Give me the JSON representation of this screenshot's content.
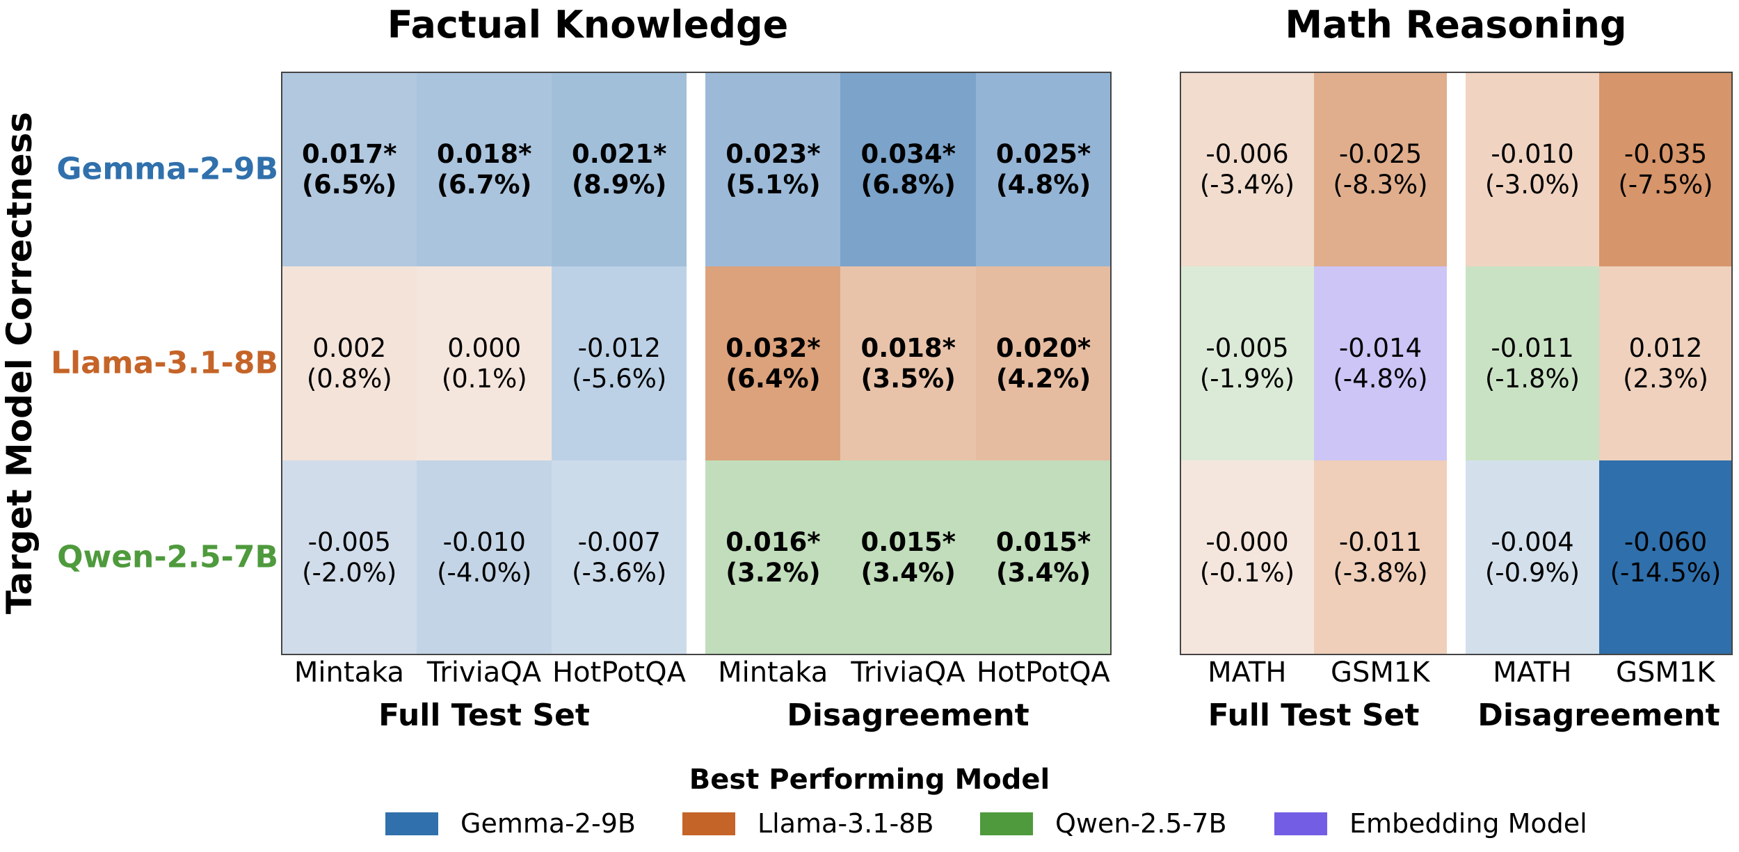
{
  "chart_data": {
    "type": "heatmap",
    "ylabel": "Target Model Correctness",
    "rows": [
      "Gemma-2-9B",
      "Llama-3.1-8B",
      "Qwen-2.5-7B"
    ],
    "row_colors": [
      "#3070ac",
      "#c56428",
      "#4e9a3c"
    ],
    "panels": [
      {
        "title": "Factual Knowledge",
        "groups": [
          {
            "label": "Full Test Set",
            "columns": [
              "Mintaka",
              "TriviaQA",
              "HotPotQA"
            ]
          },
          {
            "label": "Disagreement",
            "columns": [
              "Mintaka",
              "TriviaQA",
              "HotPotQA"
            ]
          }
        ],
        "cells": [
          [
            {
              "value": "0.017*",
              "pct": "(6.5%)",
              "significant": true,
              "fill": "#b1c8df"
            },
            {
              "value": "0.018*",
              "pct": "(6.7%)",
              "significant": true,
              "fill": "#aac4dd"
            },
            {
              "value": "0.021*",
              "pct": "(8.9%)",
              "significant": true,
              "fill": "#a2bfda"
            },
            {
              "value": "0.023*",
              "pct": "(5.1%)",
              "significant": true,
              "fill": "#9cbad8"
            },
            {
              "value": "0.034*",
              "pct": "(6.8%)",
              "significant": true,
              "fill": "#7ca3c9"
            },
            {
              "value": "0.025*",
              "pct": "(4.8%)",
              "significant": true,
              "fill": "#94b4d5"
            }
          ],
          [
            {
              "value": "0.002",
              "pct": "(0.8%)",
              "significant": false,
              "fill": "#f4e3d9"
            },
            {
              "value": "0.000",
              "pct": "(0.1%)",
              "significant": false,
              "fill": "#f5e6dd"
            },
            {
              "value": "-0.012",
              "pct": "(-5.6%)",
              "significant": false,
              "fill": "#bcd1e6"
            },
            {
              "value": "0.032*",
              "pct": "(6.4%)",
              "significant": true,
              "fill": "#dca27c"
            },
            {
              "value": "0.018*",
              "pct": "(3.5%)",
              "significant": true,
              "fill": "#e8c3aa"
            },
            {
              "value": "0.020*",
              "pct": "(4.2%)",
              "significant": true,
              "fill": "#e6bca0"
            }
          ],
          [
            {
              "value": "-0.005",
              "pct": "(-2.0%)",
              "significant": false,
              "fill": "#d0dcea"
            },
            {
              "value": "-0.010",
              "pct": "(-4.0%)",
              "significant": false,
              "fill": "#c3d4e6"
            },
            {
              "value": "-0.007",
              "pct": "(-3.6%)",
              "significant": false,
              "fill": "#ccdbea"
            },
            {
              "value": "0.016*",
              "pct": "(3.2%)",
              "significant": true,
              "fill": "#c1ddbb"
            },
            {
              "value": "0.015*",
              "pct": "(3.4%)",
              "significant": true,
              "fill": "#c1ddbb"
            },
            {
              "value": "0.015*",
              "pct": "(3.4%)",
              "significant": true,
              "fill": "#c1ddbb"
            }
          ]
        ]
      },
      {
        "title": "Math Reasoning",
        "groups": [
          {
            "label": "Full Test Set",
            "columns": [
              "MATH",
              "GSM1K"
            ]
          },
          {
            "label": "Disagreement",
            "columns": [
              "MATH",
              "GSM1K"
            ]
          }
        ],
        "cells": [
          [
            {
              "value": "-0.006",
              "pct": "(-3.4%)",
              "significant": false,
              "fill": "#f1dccd"
            },
            {
              "value": "-0.025",
              "pct": "(-8.3%)",
              "significant": false,
              "fill": "#e0ae8d"
            },
            {
              "value": "-0.010",
              "pct": "(-3.0%)",
              "significant": false,
              "fill": "#f0d3c0"
            },
            {
              "value": "-0.035",
              "pct": "(-7.5%)",
              "significant": false,
              "fill": "#d6956a"
            }
          ],
          [
            {
              "value": "-0.005",
              "pct": "(-1.9%)",
              "significant": false,
              "fill": "#dbead6"
            },
            {
              "value": "-0.014",
              "pct": "(-4.8%)",
              "significant": false,
              "fill": "#cdc5f5"
            },
            {
              "value": "-0.011",
              "pct": "(-1.8%)",
              "significant": false,
              "fill": "#cae2c4"
            },
            {
              "value": "0.012",
              "pct": "(2.3%)",
              "significant": false,
              "fill": "#efd1bd"
            }
          ],
          [
            {
              "value": "-0.000",
              "pct": "(-0.1%)",
              "significant": false,
              "fill": "#f5e6dd"
            },
            {
              "value": "-0.011",
              "pct": "(-3.8%)",
              "significant": false,
              "fill": "#efcfb9"
            },
            {
              "value": "-0.004",
              "pct": "(-0.9%)",
              "significant": false,
              "fill": "#d3e0ec"
            },
            {
              "value": "-0.060",
              "pct": "(-14.5%)",
              "significant": false,
              "fill": "#2f6fab"
            }
          ]
        ]
      }
    ],
    "legend": {
      "title": "Best Performing Model",
      "position": "bottom",
      "items": [
        {
          "label": "Gemma-2-9B",
          "color": "#3070ac"
        },
        {
          "label": "Llama-3.1-8B",
          "color": "#c56428"
        },
        {
          "label": "Qwen-2.5-7B",
          "color": "#4e9a3c"
        },
        {
          "label": "Embedding Model",
          "color": "#735de5"
        }
      ]
    }
  }
}
